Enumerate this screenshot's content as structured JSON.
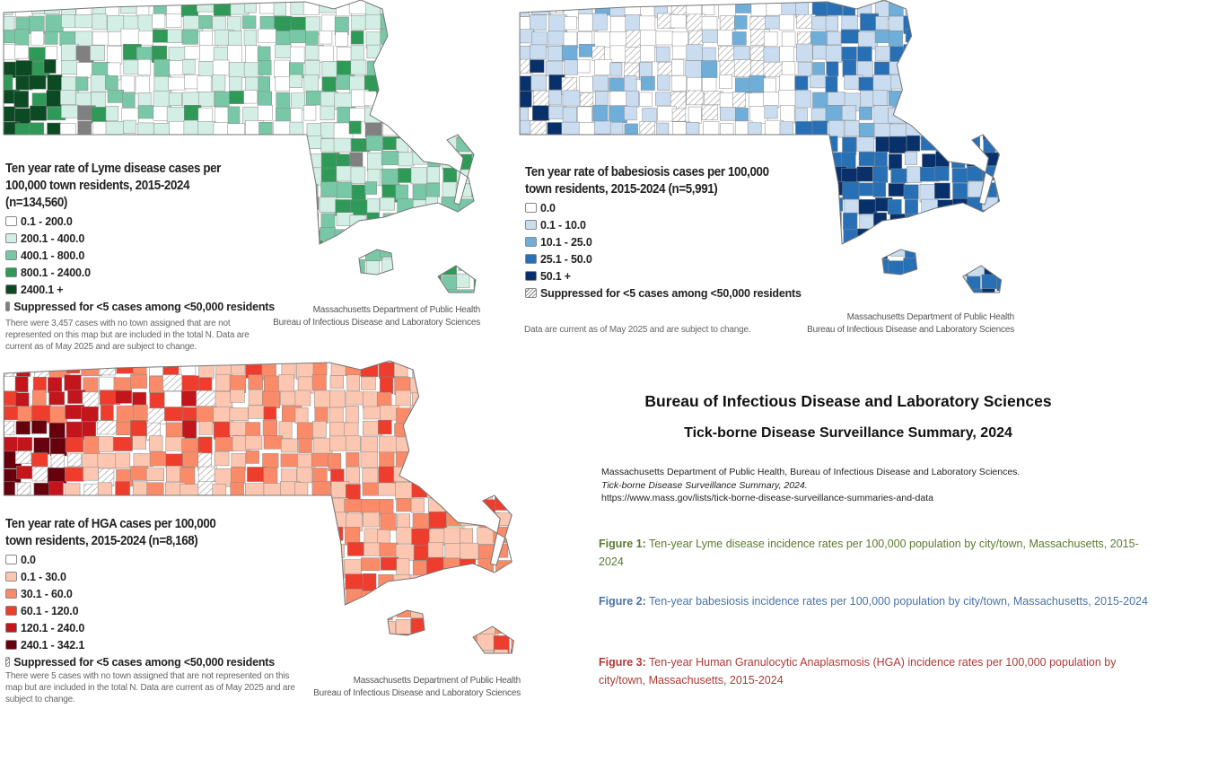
{
  "maps": [
    {
      "id": "lyme",
      "title": "Ten year rate of Lyme disease cases per 100,000 town residents, 2015-2024 (n=134,560)",
      "legend": [
        {
          "label": "0.1 - 200.0",
          "color": "#ffffff"
        },
        {
          "label": "200.1 - 400.0",
          "color": "#d3eee4"
        },
        {
          "label": "400.1 - 800.0",
          "color": "#78c7a6"
        },
        {
          "label": "800.1 - 2400.0",
          "color": "#2f9a57"
        },
        {
          "label": "2400.1 +",
          "color": "#0b4a22"
        },
        {
          "label": "Suppressed for <5 cases among <50,000 residents",
          "color": "#808080"
        }
      ],
      "note": "There were 3,457 cases with no town assigned that are not represented on this map but are included in the total N. Data are current as of May 2025 and are subject to change.",
      "credit_1": "Massachusetts Department of Public Health",
      "credit_2": "Bureau of Infectious Disease and Laboratory Sciences"
    },
    {
      "id": "babesiosis",
      "title": "Ten year rate of babesiosis cases per 100,000 town residents, 2015-2024 (n=5,991)",
      "legend": [
        {
          "label": "0.0",
          "color": "#ffffff"
        },
        {
          "label": "0.1 - 10.0",
          "color": "#c9dcf0"
        },
        {
          "label": "10.1 - 25.0",
          "color": "#6eaed8"
        },
        {
          "label": "25.1 - 50.0",
          "color": "#2770b6"
        },
        {
          "label": "50.1 +",
          "color": "#08306b"
        },
        {
          "label": "Suppressed for <5 cases among <50,000 residents",
          "color": "hatch"
        }
      ],
      "note": "Data are current as of May 2025 and are subject to change.",
      "credit_1": "Massachusetts Department of Public Health",
      "credit_2": "Bureau of Infectious Disease and Laboratory Sciences"
    },
    {
      "id": "hga",
      "title": "Ten year rate of HGA cases per 100,000 town residents, 2015-2024 (n=8,168)",
      "legend": [
        {
          "label": "0.0",
          "color": "#ffffff"
        },
        {
          "label": "0.1 - 30.0",
          "color": "#fcc6b0"
        },
        {
          "label": "30.1 - 60.0",
          "color": "#fb8b68"
        },
        {
          "label": "60.1 - 120.0",
          "color": "#ee3d2d"
        },
        {
          "label": "120.1 - 240.0",
          "color": "#c2151c"
        },
        {
          "label": "240.1 - 342.1",
          "color": "#67000d"
        },
        {
          "label": "Suppressed for <5 cases among <50,000 residents",
          "color": "hatch"
        }
      ],
      "note": "There were 5 cases with no town assigned that are not represented on this map but are included in the total N. Data are current as of May 2025 and are subject to change.",
      "credit_1": "Massachusetts Department of Public Health",
      "credit_2": "Bureau of Infectious Disease and Laboratory Sciences"
    }
  ],
  "summary": {
    "heading": "Bureau of Infectious Disease and Laboratory Sciences",
    "subheading": "Tick-borne Disease Surveillance Summary, 2024",
    "citation_1": "Massachusetts Department of Public Health, Bureau of Infectious Disease and Laboratory Sciences.",
    "citation_2": "Tick-borne Disease Surveillance Summary, 2024.",
    "citation_url": "https://www.mass.gov/lists/tick-borne-disease-surveillance-summaries-and-data",
    "figures": [
      {
        "label": "Figure 1:",
        "text": "Ten-year Lyme disease incidence rates per 100,000 population by city/town, Massachusetts, 2015-2024",
        "color": "#5b7a2e"
      },
      {
        "label": "Figure 2:",
        "text": "Ten-year babesiosis incidence rates per 100,000 population by city/town, Massachusetts, 2015-2024",
        "color": "#4a72a8"
      },
      {
        "label": "Figure 3:",
        "text": "Ten-year Human Granulocytic Anaplasmosis (HGA) incidence rates per 100,000 population by city/town, Massachusetts, 2015-2024",
        "color": "#ad3a37"
      }
    ]
  }
}
